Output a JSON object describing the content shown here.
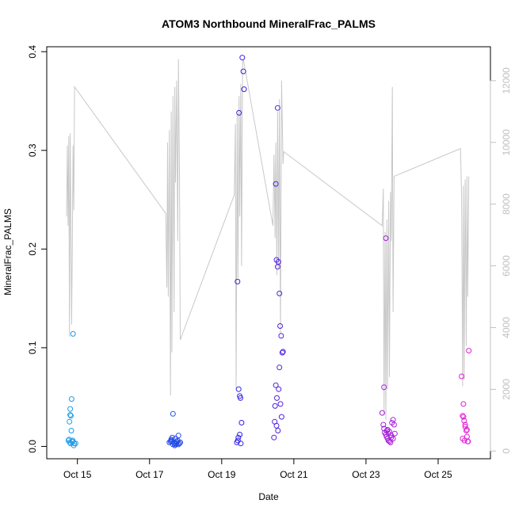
{
  "chart_data": {
    "type": "scatter",
    "title": "ATOM3 Northbound MineralFrac_PALMS",
    "xlabel": "Date",
    "ylabel": "MineralFrac_PALMS",
    "x_ticks": [
      "Oct 15",
      "Oct 17",
      "Oct 19",
      "Oct 21",
      "Oct 23",
      "Oct 25"
    ],
    "x_tick_days": [
      15,
      17,
      19,
      21,
      23,
      25
    ],
    "xlim_days": [
      14.15,
      26.45
    ],
    "ylim": [
      -0.0125,
      0.405
    ],
    "y_ticks": [
      0.0,
      0.1,
      0.2,
      0.3,
      0.4
    ],
    "y_tick_labels": [
      "0.0",
      "0.1",
      "0.2",
      "0.3",
      "0.4"
    ],
    "y2_ticks": [
      0,
      2000,
      4000,
      6000,
      8000,
      10000,
      12000
    ],
    "y2_tick_labels": [
      "0",
      "2000",
      "4000",
      "6000",
      "8000",
      "10000",
      "12000"
    ],
    "y2lim": [
      -250,
      13100
    ],
    "grid": false,
    "colors": {
      "points_start": "#1e9fe8",
      "points_mid": "#2a22e0",
      "points_end": "#e81ed8",
      "secondary_line": "#c8c8c8"
    },
    "series": [
      {
        "marker": "open-circle",
        "x": [
          14.75,
          14.77,
          14.8,
          14.82,
          14.78,
          14.8,
          14.83,
          14.85,
          14.79,
          14.81,
          14.84,
          14.87,
          14.86,
          14.88,
          14.9,
          14.91,
          14.95,
          17.55,
          17.58,
          17.6,
          17.63,
          17.65,
          17.68,
          17.7,
          17.72,
          17.75,
          17.78,
          17.8,
          17.83,
          17.85,
          17.6,
          17.65,
          17.7,
          17.75,
          17.8,
          17.62,
          17.72,
          19.42,
          19.45,
          19.47,
          19.5,
          19.52,
          19.55,
          19.57,
          19.6,
          19.62,
          19.48,
          19.44,
          19.5,
          19.46,
          19.53,
          20.45,
          20.48,
          20.5,
          20.52,
          20.55,
          20.57,
          20.6,
          20.62,
          20.65,
          20.68,
          20.7,
          20.55,
          20.6,
          20.5,
          20.53,
          20.58,
          20.63,
          20.66,
          20.47,
          20.52,
          20.56,
          23.45,
          23.48,
          23.5,
          23.52,
          23.55,
          23.57,
          23.6,
          23.62,
          23.65,
          23.68,
          23.7,
          23.72,
          23.75,
          23.78,
          23.8,
          23.5,
          23.55,
          23.6,
          23.65,
          23.7,
          23.75,
          23.58,
          23.62,
          25.65,
          25.68,
          25.7,
          25.72,
          25.75,
          25.78,
          25.8,
          25.82,
          25.85,
          25.7,
          25.75,
          25.8,
          25.68,
          25.73,
          25.83
        ],
        "y": [
          0.006,
          0.007,
          0.038,
          0.031,
          0.025,
          0.032,
          0.016,
          0.005,
          0.004,
          0.003,
          0.048,
          0.006,
          0.005,
          0.114,
          0.001,
          0.003,
          0.003,
          0.004,
          0.005,
          0.006,
          0.009,
          0.033,
          0.004,
          0.003,
          0.002,
          0.005,
          0.006,
          0.011,
          0.003,
          0.004,
          0.007,
          0.002,
          0.001,
          0.003,
          0.002,
          0.005,
          0.008,
          0.004,
          0.006,
          0.058,
          0.051,
          0.049,
          0.024,
          0.394,
          0.38,
          0.362,
          0.338,
          0.167,
          0.012,
          0.009,
          0.003,
          0.009,
          0.041,
          0.266,
          0.189,
          0.182,
          0.187,
          0.155,
          0.122,
          0.112,
          0.095,
          0.096,
          0.343,
          0.08,
          0.062,
          0.049,
          0.058,
          0.043,
          0.03,
          0.025,
          0.021,
          0.016,
          0.034,
          0.022,
          0.018,
          0.014,
          0.012,
          0.01,
          0.008,
          0.006,
          0.005,
          0.004,
          0.011,
          0.024,
          0.027,
          0.022,
          0.013,
          0.06,
          0.211,
          0.017,
          0.015,
          0.009,
          0.008,
          0.016,
          0.013,
          0.071,
          0.031,
          0.03,
          0.026,
          0.02,
          0.016,
          0.01,
          0.005,
          0.097,
          0.043,
          0.022,
          0.017,
          0.008,
          0.006,
          0.005
        ]
      }
    ],
    "secondary_series": {
      "axis": "right",
      "style": "line",
      "x": [
        14.7,
        14.72,
        14.74,
        14.76,
        14.78,
        14.8,
        14.82,
        14.84,
        14.86,
        14.88,
        14.9,
        14.92,
        17.45,
        17.48,
        17.5,
        17.52,
        17.55,
        17.58,
        17.6,
        17.62,
        17.65,
        17.68,
        17.7,
        17.72,
        17.75,
        17.78,
        17.8,
        17.83,
        17.85,
        19.35,
        19.38,
        19.4,
        19.43,
        19.45,
        19.48,
        19.5,
        19.53,
        19.55,
        19.58,
        19.6,
        20.42,
        20.45,
        20.48,
        20.5,
        20.53,
        20.55,
        20.58,
        20.6,
        20.63,
        20.66,
        20.7,
        20.72,
        23.45,
        23.48,
        23.5,
        23.53,
        23.55,
        23.58,
        23.6,
        23.63,
        23.65,
        23.68,
        23.7,
        23.73,
        23.75,
        23.78,
        25.62,
        25.65,
        25.68,
        25.7,
        25.72,
        25.75,
        25.78,
        25.8,
        25.82,
        25.85
      ],
      "y": [
        7600,
        9900,
        7300,
        10200,
        3700,
        10300,
        7400,
        4100,
        6700,
        9900,
        7800,
        11800,
        7700,
        5300,
        10000,
        5000,
        10400,
        1800,
        11000,
        3200,
        11500,
        4500,
        11800,
        8700,
        12000,
        6800,
        12700,
        9100,
        3600,
        8300,
        10600,
        2000,
        10900,
        5600,
        11500,
        7600,
        11900,
        6000,
        12600,
        12700,
        7300,
        9600,
        6900,
        10000,
        5700,
        11000,
        5900,
        11400,
        3800,
        12000,
        9300,
        9700,
        7300,
        8500,
        1200,
        7100,
        1000,
        7500,
        2000,
        8100,
        2400,
        8400,
        6800,
        11800,
        4500,
        8900,
        9800,
        8300,
        2100,
        8600,
        2300,
        8800,
        3400,
        8900,
        5000,
        8900
      ]
    }
  }
}
